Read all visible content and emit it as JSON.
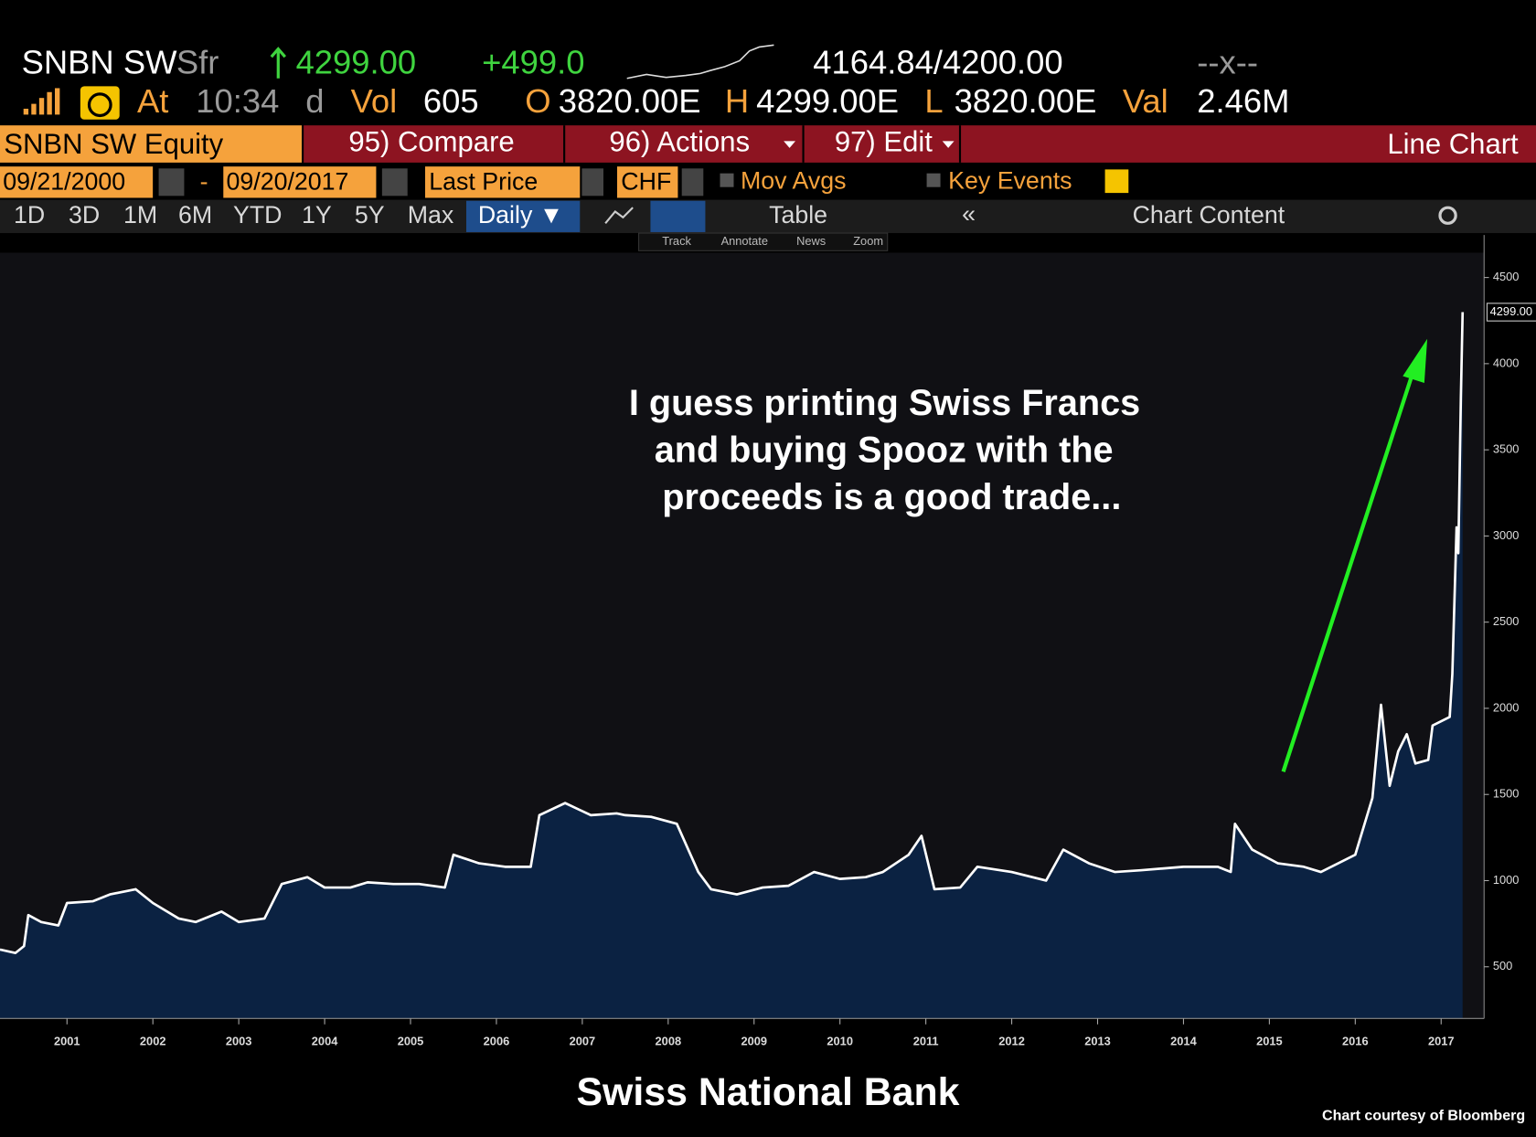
{
  "terminal": {
    "ticker": "SNBN SW",
    "currency_short": "Sfr",
    "last": "4299.00",
    "change": "+499.0",
    "bid_ask": "4164.84/4200.00",
    "dash": "--x--",
    "at": "At",
    "time": "10:34",
    "d": "d",
    "vol_label": "Vol",
    "vol": "605",
    "o_label": "O",
    "open": "3820.00E",
    "h_label": "H",
    "high": "4299.00E",
    "l_label": "L",
    "low": "3820.00E",
    "val_label": "Val",
    "val": "2.46M",
    "security": "SNBN SW Equity",
    "compare": "95) Compare",
    "actions": "96) Actions",
    "edit": "97) Edit",
    "chart_kind": "Line Chart",
    "start_date": "09/21/2000",
    "date_sep": "-",
    "end_date": "09/20/2017",
    "field": "Last Price",
    "currency": "CHF",
    "mov_avgs": "Mov Avgs",
    "key_events": "Key Events",
    "periods": [
      "1D",
      "3D",
      "1M",
      "6M",
      "YTD",
      "1Y",
      "5Y",
      "Max"
    ],
    "frequency": "Daily ▼",
    "table": "Table",
    "chart_content": "Chart Content",
    "tools": [
      "Track",
      "Annotate",
      "News",
      "Zoom"
    ]
  },
  "chart_data": {
    "type": "area",
    "title": "Swiss National Bank",
    "annotation": [
      "I guess printing Swiss Francs",
      "and buying Spooz with the",
      "proceeds is a good trade..."
    ],
    "credit": "Chart courtesy of Bloomberg",
    "last_price_label": "4299.00",
    "color": "#0b2242",
    "line_color": "#ffffff",
    "arrow_color": "#22ee22",
    "x": [
      2000.72,
      2000.9,
      2001.0,
      2001.05,
      2001.2,
      2001.4,
      2001.5,
      2001.8,
      2002.0,
      2002.3,
      2002.5,
      2002.8,
      2003.0,
      2003.3,
      2003.5,
      2003.8,
      2004.0,
      2004.3,
      2004.5,
      2004.8,
      2005.0,
      2005.3,
      2005.6,
      2005.9,
      2006.0,
      2006.3,
      2006.6,
      2006.9,
      2007.0,
      2007.3,
      2007.6,
      2007.9,
      2008.0,
      2008.3,
      2008.6,
      2008.85,
      2009.0,
      2009.3,
      2009.6,
      2009.9,
      2010.2,
      2010.5,
      2010.8,
      2011.0,
      2011.3,
      2011.45,
      2011.6,
      2011.9,
      2012.1,
      2012.5,
      2012.9,
      2013.1,
      2013.4,
      2013.7,
      2014.0,
      2014.5,
      2014.9,
      2015.05,
      2015.1,
      2015.3,
      2015.6,
      2015.9,
      2016.1,
      2016.5,
      2016.7,
      2016.8,
      2016.9,
      2017.0,
      2017.1,
      2017.2,
      2017.35,
      2017.4,
      2017.6,
      2017.63,
      2017.68,
      2017.7,
      2017.73,
      2017.75
    ],
    "values": [
      600,
      580,
      620,
      800,
      760,
      740,
      870,
      880,
      920,
      950,
      870,
      780,
      760,
      820,
      760,
      780,
      980,
      1020,
      960,
      960,
      990,
      980,
      980,
      960,
      1150,
      1100,
      1080,
      1080,
      1380,
      1450,
      1380,
      1390,
      1380,
      1370,
      1330,
      1050,
      950,
      920,
      960,
      970,
      1050,
      1010,
      1020,
      1050,
      1150,
      1260,
      950,
      960,
      1080,
      1050,
      1000,
      1180,
      1100,
      1050,
      1060,
      1080,
      1080,
      1050,
      1330,
      1180,
      1100,
      1080,
      1050,
      1150,
      1480,
      2020,
      1550,
      1750,
      1850,
      1680,
      1700,
      1900,
      1950,
      2200,
      3050,
      2900,
      3800,
      4299
    ],
    "xlim": [
      2000.72,
      2018.0
    ],
    "ylim": [
      200,
      4644
    ],
    "xticks": [
      {
        "value": 2001.5,
        "label": "2001"
      },
      {
        "value": 2002.5,
        "label": "2002"
      },
      {
        "value": 2003.5,
        "label": "2003"
      },
      {
        "value": 2004.5,
        "label": "2004"
      },
      {
        "value": 2005.5,
        "label": "2005"
      },
      {
        "value": 2006.5,
        "label": "2006"
      },
      {
        "value": 2007.5,
        "label": "2007"
      },
      {
        "value": 2008.5,
        "label": "2008"
      },
      {
        "value": 2009.5,
        "label": "2009"
      },
      {
        "value": 2010.5,
        "label": "2010"
      },
      {
        "value": 2011.5,
        "label": "2011"
      },
      {
        "value": 2012.5,
        "label": "2012"
      },
      {
        "value": 2013.5,
        "label": "2013"
      },
      {
        "value": 2014.5,
        "label": "2014"
      },
      {
        "value": 2015.5,
        "label": "2015"
      },
      {
        "value": 2016.5,
        "label": "2016"
      },
      {
        "value": 2017.5,
        "label": "2017"
      }
    ],
    "yticks": [
      500,
      1000,
      1500,
      2000,
      2500,
      3000,
      3500,
      4000,
      4500
    ]
  }
}
